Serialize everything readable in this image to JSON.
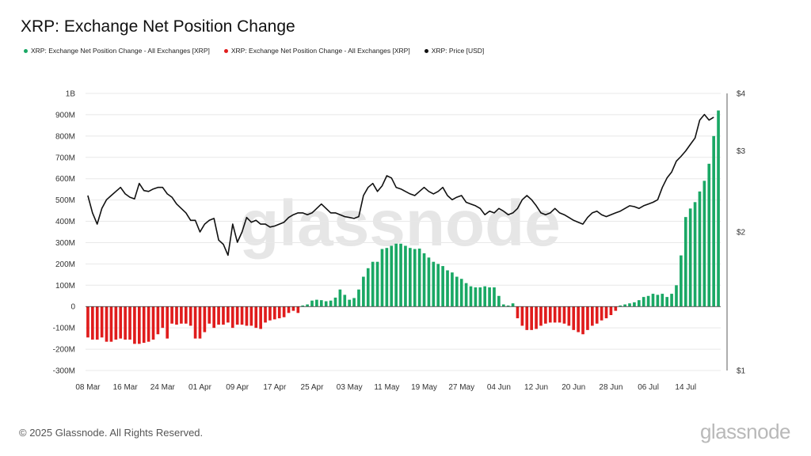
{
  "header": {
    "title": "XRP: Exchange Net Position Change"
  },
  "legend": [
    {
      "label": "XRP: Exchange Net Position Change - All Exchanges [XRP]",
      "color": "#1aa865"
    },
    {
      "label": "XRP: Exchange Net Position Change - All Exchanges [XRP]",
      "color": "#e01c1c"
    },
    {
      "label": "XRP: Price [USD]",
      "color": "#111111"
    }
  ],
  "footer": {
    "copyright": "© 2025 Glassnode. All Rights Reserved.",
    "logo_text": "glassnode"
  },
  "watermark": "glassnode",
  "chart_data": {
    "type": "bar",
    "title": "XRP: Exchange Net Position Change",
    "xlabel": "",
    "ylabel": "",
    "ylim": [
      -300000000,
      1000000000
    ],
    "y_ticks": [
      {
        "v": 1000000000,
        "label": "1B"
      },
      {
        "v": 900000000,
        "label": "900M"
      },
      {
        "v": 800000000,
        "label": "800M"
      },
      {
        "v": 700000000,
        "label": "700M"
      },
      {
        "v": 600000000,
        "label": "600M"
      },
      {
        "v": 500000000,
        "label": "500M"
      },
      {
        "v": 400000000,
        "label": "400M"
      },
      {
        "v": 300000000,
        "label": "300M"
      },
      {
        "v": 200000000,
        "label": "200M"
      },
      {
        "v": 100000000,
        "label": "100M"
      },
      {
        "v": 0,
        "label": "0"
      },
      {
        "v": -100000000,
        "label": "-100M"
      },
      {
        "v": -200000000,
        "label": "-200M"
      },
      {
        "v": -300000000,
        "label": "-300M"
      }
    ],
    "y2_scale": "log",
    "y2lim": [
      1,
      4
    ],
    "y2_ticks": [
      {
        "v": 4,
        "label": "$4"
      },
      {
        "v": 3,
        "label": "$3"
      },
      {
        "v": 2,
        "label": "$2"
      },
      {
        "v": 1,
        "label": "$1"
      }
    ],
    "x_ticks": [
      {
        "i": 0,
        "label": "08 Mar"
      },
      {
        "i": 8,
        "label": "16 Mar"
      },
      {
        "i": 16,
        "label": "24 Mar"
      },
      {
        "i": 24,
        "label": "01 Apr"
      },
      {
        "i": 32,
        "label": "09 Apr"
      },
      {
        "i": 40,
        "label": "17 Apr"
      },
      {
        "i": 48,
        "label": "25 Apr"
      },
      {
        "i": 56,
        "label": "03 May"
      },
      {
        "i": 64,
        "label": "11 May"
      },
      {
        "i": 72,
        "label": "19 May"
      },
      {
        "i": 80,
        "label": "27 May"
      },
      {
        "i": 88,
        "label": "04 Jun"
      },
      {
        "i": 96,
        "label": "12 Jun"
      },
      {
        "i": 104,
        "label": "20 Jun"
      },
      {
        "i": 112,
        "label": "28 Jun"
      },
      {
        "i": 120,
        "label": "06 Jul"
      },
      {
        "i": 128,
        "label": "14 Jul"
      }
    ],
    "start_date": "08 Mar",
    "series": [
      {
        "name": "XRP: Exchange Net Position Change - All Exchanges [XRP]",
        "unit": "millions XRP",
        "positive_color": "#1aa865",
        "negative_color": "#e01c1c",
        "values": [
          -145,
          -155,
          -155,
          -145,
          -165,
          -165,
          -155,
          -150,
          -155,
          -155,
          -175,
          -175,
          -170,
          -165,
          -155,
          -130,
          -100,
          -150,
          -80,
          -85,
          -80,
          -80,
          -90,
          -150,
          -150,
          -120,
          -80,
          -100,
          -85,
          -85,
          -75,
          -100,
          -85,
          -85,
          -90,
          -90,
          -100,
          -105,
          -75,
          -65,
          -60,
          -55,
          -50,
          -30,
          -20,
          -30,
          5,
          10,
          28,
          32,
          30,
          25,
          28,
          42,
          80,
          55,
          32,
          40,
          80,
          140,
          180,
          210,
          210,
          270,
          275,
          285,
          295,
          295,
          285,
          275,
          270,
          272,
          250,
          230,
          210,
          200,
          190,
          170,
          160,
          140,
          130,
          110,
          95,
          90,
          90,
          95,
          90,
          90,
          50,
          10,
          5,
          15,
          -55,
          -90,
          -110,
          -110,
          -105,
          -90,
          -80,
          -75,
          -75,
          -75,
          -80,
          -90,
          -110,
          -120,
          -130,
          -110,
          -90,
          -80,
          -65,
          -55,
          -40,
          -20,
          5,
          10,
          15,
          20,
          30,
          45,
          50,
          60,
          55,
          60,
          45,
          60,
          100,
          240,
          420,
          460,
          490,
          540,
          590,
          670,
          800,
          920
        ]
      },
      {
        "name": "XRP: Price [USD]",
        "unit": "USD",
        "color": "#111111",
        "values": [
          2.4,
          2.2,
          2.08,
          2.25,
          2.35,
          2.4,
          2.45,
          2.5,
          2.42,
          2.38,
          2.36,
          2.55,
          2.46,
          2.45,
          2.48,
          2.5,
          2.5,
          2.42,
          2.38,
          2.3,
          2.25,
          2.2,
          2.12,
          2.12,
          2.0,
          2.08,
          2.12,
          2.14,
          1.92,
          1.88,
          1.78,
          2.08,
          1.9,
          2.0,
          2.15,
          2.1,
          2.12,
          2.08,
          2.08,
          2.05,
          2.06,
          2.08,
          2.1,
          2.15,
          2.18,
          2.2,
          2.2,
          2.18,
          2.2,
          2.25,
          2.3,
          2.25,
          2.2,
          2.2,
          2.18,
          2.16,
          2.15,
          2.14,
          2.16,
          2.4,
          2.5,
          2.55,
          2.45,
          2.52,
          2.65,
          2.62,
          2.5,
          2.48,
          2.45,
          2.42,
          2.4,
          2.45,
          2.5,
          2.45,
          2.42,
          2.45,
          2.5,
          2.4,
          2.35,
          2.38,
          2.4,
          2.32,
          2.3,
          2.28,
          2.25,
          2.18,
          2.22,
          2.2,
          2.25,
          2.22,
          2.18,
          2.2,
          2.25,
          2.35,
          2.4,
          2.35,
          2.28,
          2.2,
          2.18,
          2.2,
          2.25,
          2.2,
          2.18,
          2.15,
          2.12,
          2.1,
          2.08,
          2.15,
          2.2,
          2.22,
          2.18,
          2.16,
          2.18,
          2.2,
          2.22,
          2.25,
          2.28,
          2.27,
          2.25,
          2.28,
          2.3,
          2.32,
          2.35,
          2.5,
          2.62,
          2.7,
          2.85,
          2.92,
          3.0,
          3.1,
          3.2,
          3.5,
          3.6,
          3.5,
          3.55
        ]
      }
    ]
  }
}
